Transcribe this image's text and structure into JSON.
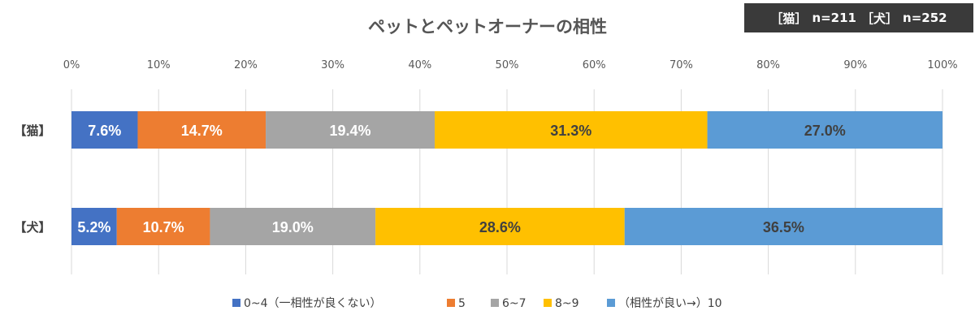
{
  "sample_info": {
    "cat_label": "［猫］",
    "cat_n": "n=211",
    "dog_label": "［犬］",
    "dog_n": "n=252"
  },
  "chart_data": {
    "type": "bar",
    "stacked": true,
    "orientation": "horizontal",
    "percent": true,
    "title": "ペットとペットオーナーの相性",
    "categories": [
      "【猫】",
      "【犬】"
    ],
    "xlim": [
      0,
      100
    ],
    "x_ticks": [
      "0%",
      "10%",
      "20%",
      "30%",
      "40%",
      "50%",
      "60%",
      "70%",
      "80%",
      "90%",
      "100%"
    ],
    "grid": true,
    "legend_position": "bottom",
    "series": [
      {
        "name": "0~4（一相性が良くない）",
        "color": "#4472C4",
        "label_color": "#ffffff",
        "values": [
          7.6,
          5.2
        ],
        "labels": [
          "7.6%",
          "5.2%"
        ]
      },
      {
        "name": "5",
        "color": "#ED7D31",
        "label_color": "#ffffff",
        "values": [
          14.7,
          10.7
        ],
        "labels": [
          "14.7%",
          "10.7%"
        ]
      },
      {
        "name": "6~7",
        "color": "#A5A5A5",
        "label_color": "#ffffff",
        "values": [
          19.4,
          19.0
        ],
        "labels": [
          "19.4%",
          "19.0%"
        ]
      },
      {
        "name": "8~9",
        "color": "#FFC000",
        "label_color": "#404040",
        "values": [
          31.3,
          28.6
        ],
        "labels": [
          "31.3%",
          "28.6%"
        ]
      },
      {
        "name": "（相性が良い→）10",
        "color": "#5B9BD5",
        "label_color": "#404040",
        "values": [
          27.0,
          36.5
        ],
        "labels": [
          "27.0%",
          "36.5%"
        ]
      }
    ]
  }
}
